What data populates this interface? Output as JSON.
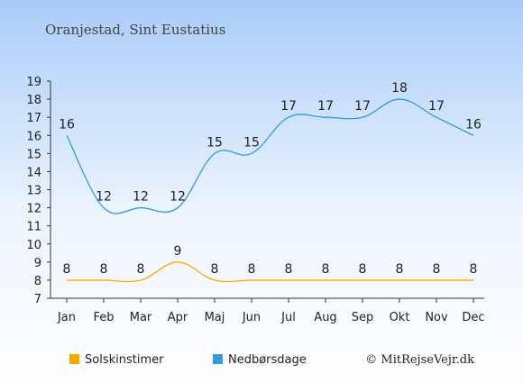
{
  "chart_data": {
    "type": "line",
    "title": "Oranjestad, Sint Eustatius",
    "categories": [
      "Jan",
      "Feb",
      "Mar",
      "Apr",
      "Maj",
      "Jun",
      "Jul",
      "Aug",
      "Sep",
      "Okt",
      "Nov",
      "Dec"
    ],
    "y_ticks": [
      7,
      8,
      9,
      10,
      11,
      12,
      13,
      14,
      15,
      16,
      17,
      18,
      19
    ],
    "ylim": [
      7,
      19
    ],
    "series": [
      {
        "name": "Solskinstimer",
        "color": "#ffa500",
        "values": [
          8,
          8,
          8,
          9,
          8,
          8,
          8,
          8,
          8,
          8,
          8,
          8
        ]
      },
      {
        "name": "Nedbørsdage",
        "color": "#3399dd",
        "values": [
          16,
          12,
          12,
          12,
          15,
          15,
          17,
          17,
          17,
          18,
          17,
          16
        ]
      }
    ],
    "legend_position": "bottom",
    "credit": "© MitRejseVejr.dk"
  }
}
